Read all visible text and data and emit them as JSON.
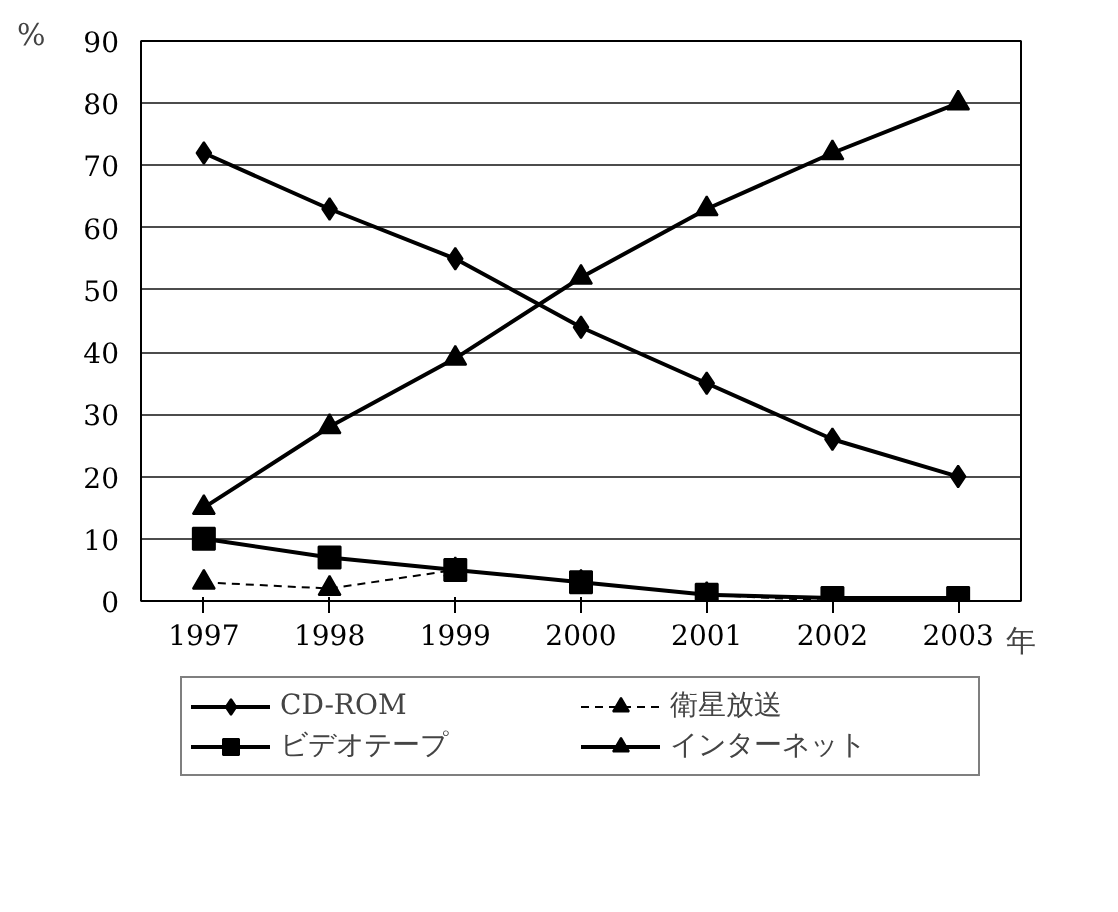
{
  "chart_data": {
    "type": "line",
    "xlabel": "年",
    "ylabel": "%",
    "categories": [
      "1997",
      "1998",
      "1999",
      "2000",
      "2001",
      "2002",
      "2003"
    ],
    "series": [
      {
        "name": "CD-ROM",
        "color": "#000000",
        "marker": "diamond",
        "line_style": "solid",
        "values": [
          72,
          63,
          55,
          44,
          35,
          26,
          20
        ]
      },
      {
        "name": "ビデオテープ",
        "color": "#000000",
        "marker": "square",
        "line_style": "solid",
        "values": [
          10,
          7,
          5,
          3,
          1,
          0.5,
          0.5
        ]
      },
      {
        "name": "衛星放送",
        "color": "#000000",
        "marker": "triangle",
        "line_style": "dashed",
        "values": [
          3,
          2,
          5,
          3,
          1,
          0,
          0
        ]
      },
      {
        "name": "インターネット",
        "color": "#000000",
        "marker": "triangle",
        "line_style": "solid",
        "values": [
          15,
          28,
          39,
          52,
          63,
          72,
          80
        ]
      }
    ],
    "ylim": [
      0,
      90
    ],
    "yticks": [
      0,
      10,
      20,
      30,
      40,
      50,
      60,
      70,
      80,
      90
    ],
    "grid": "y",
    "legend": "bottom"
  }
}
